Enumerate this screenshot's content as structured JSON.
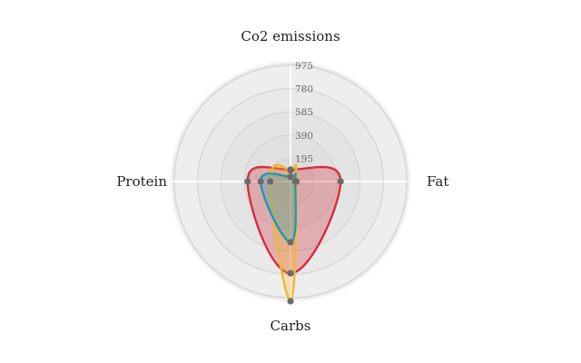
{
  "chart_data": {
    "type": "radar",
    "axes": [
      "Co2 emissions",
      "Fat",
      "Carbs",
      "Protein"
    ],
    "radial_ticks": [
      "195",
      "390",
      "585",
      "780",
      "975"
    ],
    "rmax": 975,
    "grid": true,
    "legend": "none",
    "series": [
      {
        "values": [
          100,
          420,
          770,
          360
        ],
        "color": "#d62e3c",
        "fill": "rgba(214,46,60,0.30)"
      },
      {
        "values": [
          95,
          50,
          1005,
          170
        ],
        "color": "#f2b632",
        "fill": "rgba(242,182,50,0.30)"
      },
      {
        "values": [
          40,
          40,
          510,
          250
        ],
        "color": "#1f9ab0",
        "fill": "rgba(31,154,176,0.30)"
      }
    ],
    "marker_color": "#6b6b6b"
  }
}
